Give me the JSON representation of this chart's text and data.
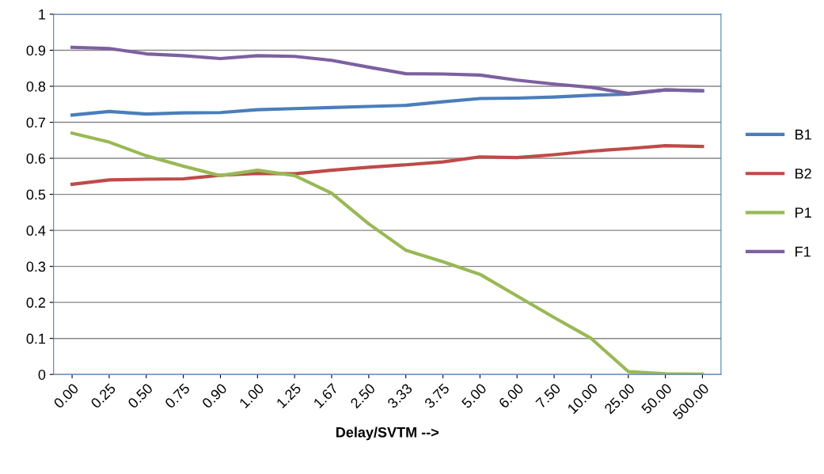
{
  "chart_data": {
    "type": "line",
    "xlabel": "Delay/SVTM -->",
    "categories": [
      "0.00",
      "0.25",
      "0.50",
      "0.75",
      "0.90",
      "1.00",
      "1.25",
      "1.67",
      "2.50",
      "3.33",
      "3.75",
      "5.00",
      "6.00",
      "7.50",
      "10.00",
      "25.00",
      "50.00",
      "500.00"
    ],
    "series": [
      {
        "name": "B1",
        "color": "#4a7ebb",
        "values": [
          0.72,
          0.73,
          0.723,
          0.726,
          0.727,
          0.735,
          0.738,
          0.741,
          0.744,
          0.747,
          0.757,
          0.766,
          0.767,
          0.77,
          0.775,
          0.778,
          0.79,
          0.787
        ]
      },
      {
        "name": "B2",
        "color": "#be4b48",
        "values": [
          0.528,
          0.54,
          0.542,
          0.543,
          0.553,
          0.558,
          0.557,
          0.567,
          0.575,
          0.582,
          0.59,
          0.604,
          0.602,
          0.61,
          0.62,
          0.627,
          0.635,
          0.633
        ]
      },
      {
        "name": "P1",
        "color": "#98b954",
        "values": [
          0.67,
          0.645,
          0.607,
          0.578,
          0.552,
          0.567,
          0.552,
          0.503,
          0.418,
          0.345,
          0.313,
          0.278,
          0.218,
          0.158,
          0.1,
          0.008,
          0.002,
          0.001
        ]
      },
      {
        "name": "F1",
        "color": "#7d60a0",
        "values": [
          0.908,
          0.905,
          0.89,
          0.885,
          0.877,
          0.885,
          0.883,
          0.872,
          0.853,
          0.835,
          0.834,
          0.831,
          0.817,
          0.806,
          0.797,
          0.78,
          0.79,
          0.788
        ]
      }
    ],
    "ylim": [
      0,
      1
    ],
    "yticks": [
      0,
      0.1,
      0.2,
      0.3,
      0.4,
      0.5,
      0.6,
      0.7,
      0.8,
      0.9,
      1
    ],
    "grid": "y",
    "legend": "right",
    "marker": "none",
    "line_style": "solid"
  }
}
